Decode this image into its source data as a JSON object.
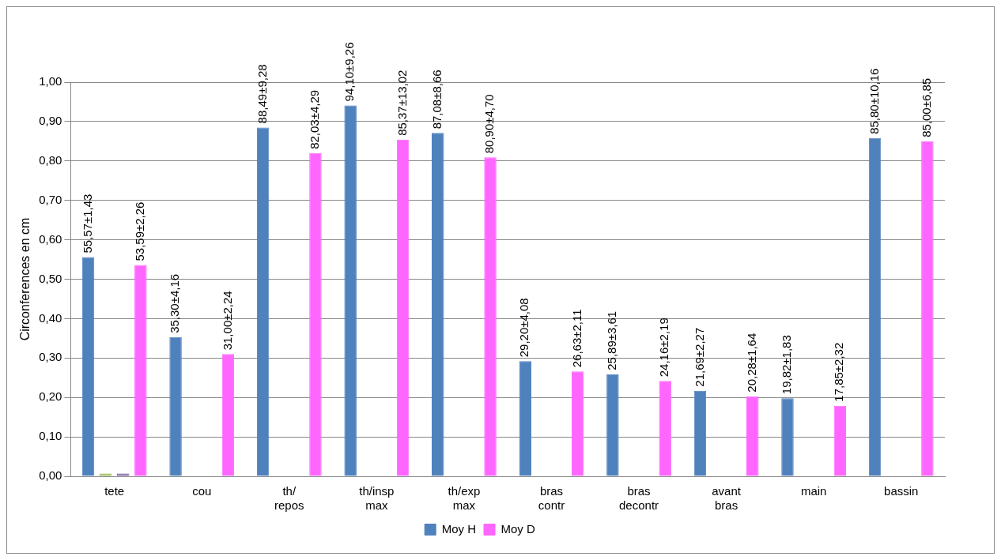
{
  "chart_data": {
    "type": "bar",
    "ylabel": "Circonferences en cm",
    "categories": [
      "tete",
      "cou",
      "th/ repos",
      "th/insp max",
      "th/exp max",
      "bras contr",
      "bras decontr",
      "avant bras",
      "main",
      "bassin"
    ],
    "series": [
      {
        "name": "Moy H",
        "color": "#4f81bd",
        "values": [
          0.556,
          0.353,
          0.885,
          0.941,
          0.871,
          0.292,
          0.259,
          0.217,
          0.198,
          0.858
        ]
      },
      {
        "color": "#9bbb59",
        "values": [
          0.007,
          null,
          null,
          null,
          null,
          null,
          null,
          null,
          null,
          null
        ]
      },
      {
        "color": "#8064a2",
        "values": [
          0.007,
          null,
          null,
          null,
          null,
          null,
          null,
          null,
          null,
          null
        ]
      },
      {
        "name": "Moy D",
        "color": "#ff66ff",
        "values": [
          0.536,
          0.31,
          0.82,
          0.854,
          0.809,
          0.266,
          0.242,
          0.203,
          0.179,
          0.85
        ]
      }
    ],
    "annotations": [
      "55,57±1,43",
      "35,30±4,16",
      "88,49±9,28",
      "94,10±9,26",
      "87,08±8,66",
      "29,20±4,08",
      "25,89±3,61",
      "21,69±2,27",
      "19,82±1,83",
      "85,80±10,16",
      "53,59±2,26",
      "31,00±2,24",
      "82,03±4,29",
      "85,37±13,02",
      "80,90±4,70",
      "26,63±2,11",
      "24,16±2,19",
      "20,28±1,64",
      "17,85±2,32",
      "85,00±6,85"
    ],
    "ylim": [
      0,
      1
    ],
    "yticks": [
      {
        "value": 0,
        "label": "0,00"
      },
      {
        "value": 0.1,
        "label": "0,10"
      },
      {
        "value": 0.2,
        "label": "0,20"
      },
      {
        "value": 0.3,
        "label": "0,30"
      },
      {
        "value": 0.4,
        "label": "0,40"
      },
      {
        "value": 0.5,
        "label": "0,50"
      },
      {
        "value": 0.6,
        "label": "0,60"
      },
      {
        "value": 0.7,
        "label": "0,70"
      },
      {
        "value": 0.8,
        "label": "0,80"
      },
      {
        "value": 0.9,
        "label": "0,90"
      },
      {
        "value": 1,
        "label": "1,00"
      }
    ],
    "grid": "y",
    "legend": "bottom"
  }
}
